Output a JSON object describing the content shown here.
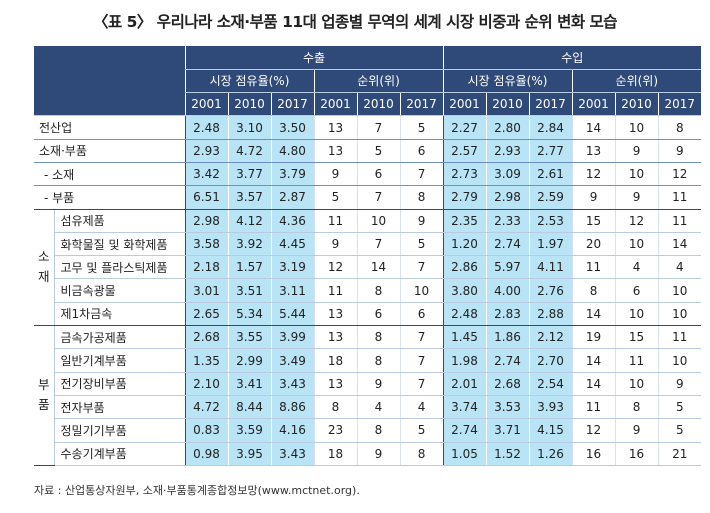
{
  "title": "〈표 5〉 우리나라 소재·부품 11대 업종별 무역의 세계 시장 비중과 순위 변화 모습",
  "header": {
    "export": "수출",
    "import": "수입",
    "share": "시장 점유율(%)",
    "rank": "순위(위)",
    "years": [
      "2001",
      "2010",
      "2017"
    ]
  },
  "groups": {
    "materials": "소\n재",
    "parts": "부\n품"
  },
  "rows": [
    {
      "label": "전산업",
      "ex_share": [
        "2.48",
        "3.10",
        "3.50"
      ],
      "ex_rank": [
        "13",
        "7",
        "5"
      ],
      "im_share": [
        "2.27",
        "2.80",
        "2.84"
      ],
      "im_rank": [
        "14",
        "10",
        "8"
      ]
    },
    {
      "label": "소재·부품",
      "ex_share": [
        "2.93",
        "4.72",
        "4.80"
      ],
      "ex_rank": [
        "13",
        "5",
        "6"
      ],
      "im_share": [
        "2.57",
        "2.93",
        "2.77"
      ],
      "im_rank": [
        "13",
        "9",
        "9"
      ]
    },
    {
      "label": "- 소재",
      "ex_share": [
        "3.42",
        "3.77",
        "3.79"
      ],
      "ex_rank": [
        "9",
        "6",
        "7"
      ],
      "im_share": [
        "2.73",
        "3.09",
        "2.61"
      ],
      "im_rank": [
        "12",
        "10",
        "12"
      ]
    },
    {
      "label": "- 부품",
      "ex_share": [
        "6.51",
        "3.57",
        "2.87"
      ],
      "ex_rank": [
        "5",
        "7",
        "8"
      ],
      "im_share": [
        "2.79",
        "2.98",
        "2.59"
      ],
      "im_rank": [
        "9",
        "9",
        "11"
      ]
    },
    {
      "label": "섬유제품",
      "ex_share": [
        "2.98",
        "4.12",
        "4.36"
      ],
      "ex_rank": [
        "11",
        "10",
        "9"
      ],
      "im_share": [
        "2.35",
        "2.33",
        "2.53"
      ],
      "im_rank": [
        "15",
        "12",
        "11"
      ]
    },
    {
      "label": "화학물질 및 화학제품",
      "ex_share": [
        "3.58",
        "3.92",
        "4.45"
      ],
      "ex_rank": [
        "9",
        "7",
        "5"
      ],
      "im_share": [
        "1.20",
        "2.74",
        "1.97"
      ],
      "im_rank": [
        "20",
        "10",
        "14"
      ]
    },
    {
      "label": "고무 및 플라스틱제품",
      "ex_share": [
        "2.18",
        "1.57",
        "3.19"
      ],
      "ex_rank": [
        "12",
        "14",
        "7"
      ],
      "im_share": [
        "2.86",
        "5.97",
        "4.11"
      ],
      "im_rank": [
        "11",
        "4",
        "4"
      ]
    },
    {
      "label": "비금속광물",
      "ex_share": [
        "3.01",
        "3.51",
        "3.11"
      ],
      "ex_rank": [
        "11",
        "8",
        "10"
      ],
      "im_share": [
        "3.80",
        "4.00",
        "2.76"
      ],
      "im_rank": [
        "8",
        "6",
        "10"
      ]
    },
    {
      "label": "제1차금속",
      "ex_share": [
        "2.65",
        "5.34",
        "5.44"
      ],
      "ex_rank": [
        "13",
        "6",
        "6"
      ],
      "im_share": [
        "2.48",
        "2.83",
        "2.88"
      ],
      "im_rank": [
        "14",
        "10",
        "10"
      ]
    },
    {
      "label": "금속가공제품",
      "ex_share": [
        "2.68",
        "3.55",
        "3.99"
      ],
      "ex_rank": [
        "13",
        "8",
        "7"
      ],
      "im_share": [
        "1.45",
        "1.86",
        "2.12"
      ],
      "im_rank": [
        "19",
        "15",
        "11"
      ]
    },
    {
      "label": "일반기계부품",
      "ex_share": [
        "1.35",
        "2.99",
        "3.49"
      ],
      "ex_rank": [
        "18",
        "8",
        "7"
      ],
      "im_share": [
        "1.98",
        "2.74",
        "2.70"
      ],
      "im_rank": [
        "14",
        "11",
        "10"
      ]
    },
    {
      "label": "전기장비부품",
      "ex_share": [
        "2.10",
        "3.41",
        "3.43"
      ],
      "ex_rank": [
        "13",
        "9",
        "7"
      ],
      "im_share": [
        "2.01",
        "2.68",
        "2.54"
      ],
      "im_rank": [
        "14",
        "10",
        "9"
      ]
    },
    {
      "label": "전자부품",
      "ex_share": [
        "4.72",
        "8.44",
        "8.86"
      ],
      "ex_rank": [
        "8",
        "4",
        "4"
      ],
      "im_share": [
        "3.74",
        "3.53",
        "3.93"
      ],
      "im_rank": [
        "11",
        "8",
        "5"
      ]
    },
    {
      "label": "정밀기기부품",
      "ex_share": [
        "0.83",
        "3.59",
        "4.16"
      ],
      "ex_rank": [
        "23",
        "8",
        "5"
      ],
      "im_share": [
        "2.74",
        "3.71",
        "4.15"
      ],
      "im_rank": [
        "12",
        "9",
        "5"
      ]
    },
    {
      "label": "수송기계부품",
      "ex_share": [
        "0.98",
        "3.95",
        "3.43"
      ],
      "ex_rank": [
        "18",
        "9",
        "8"
      ],
      "im_share": [
        "1.05",
        "1.52",
        "1.26"
      ],
      "im_rank": [
        "16",
        "16",
        "21"
      ]
    }
  ],
  "source": "자료 : 산업통상자원부, 소재·부품통계종합정보망(www.mctnet.org)."
}
